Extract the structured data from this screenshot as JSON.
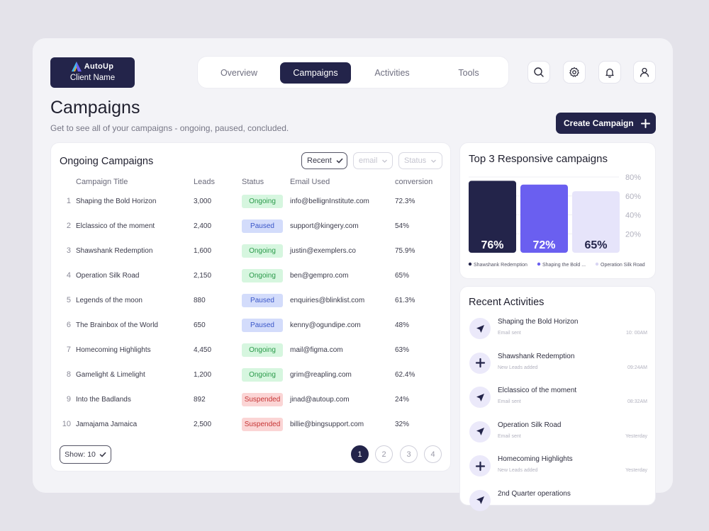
{
  "brand": {
    "name": "AutoUp",
    "client": "Client Name"
  },
  "nav": {
    "tabs": [
      {
        "label": "Overview"
      },
      {
        "label": "Campaigns"
      },
      {
        "label": "Activities"
      },
      {
        "label": "Tools"
      }
    ],
    "active": "Campaigns"
  },
  "header_icons": [
    "search-icon",
    "gear-icon",
    "bell-icon",
    "user-icon"
  ],
  "page": {
    "title": "Campaigns",
    "subtitle": "Get to see all of your campaigns - ongoing, paused, concluded.",
    "create_label": "Create Campaign"
  },
  "campaigns": {
    "title": "Ongoing Campaigns",
    "filters": {
      "sort": "Recent",
      "email": "email",
      "status": "Status"
    },
    "columns": {
      "title": "Campaign Title",
      "leads": "Leads",
      "status": "Status",
      "email": "Email Used",
      "conversion": "conversion"
    },
    "rows": [
      {
        "n": "1",
        "title": "Shaping the Bold Horizon",
        "leads": "3,000",
        "status": "Ongoing",
        "email": "info@bellignInstitute.com",
        "conversion": "72.3%"
      },
      {
        "n": "2",
        "title": "Elclassico of the moment",
        "leads": "2,400",
        "status": "Paused",
        "email": "support@kingery.com",
        "conversion": "54%"
      },
      {
        "n": "3",
        "title": "Shawshank Redemption",
        "leads": "1,600",
        "status": "Ongoing",
        "email": "justin@exemplers.co",
        "conversion": "75.9%"
      },
      {
        "n": "4",
        "title": "Operation Silk Road",
        "leads": "2,150",
        "status": "Ongoing",
        "email": "ben@gempro.com",
        "conversion": "65%"
      },
      {
        "n": "5",
        "title": "Legends of the moon",
        "leads": "880",
        "status": "Paused",
        "email": "enquiries@blinklist.com",
        "conversion": "61.3%"
      },
      {
        "n": "6",
        "title": "The Brainbox of the World",
        "leads": "650",
        "status": "Paused",
        "email": "kenny@ogundipe.com",
        "conversion": "48%"
      },
      {
        "n": "7",
        "title": "Homecoming Highlights",
        "leads": "4,450",
        "status": "Ongoing",
        "email": "mail@figma.com",
        "conversion": "63%"
      },
      {
        "n": "8",
        "title": "Gamelight & Limelight",
        "leads": "1,200",
        "status": "Ongoing",
        "email": "grim@reapling.com",
        "conversion": "62.4%"
      },
      {
        "n": "9",
        "title": "Into the Badlands",
        "leads": "892",
        "status": "Suspended",
        "email": "jinad@autoup.com",
        "conversion": "24%"
      },
      {
        "n": "10",
        "title": "Jamajama Jamaica",
        "leads": "2,500",
        "status": "Suspended",
        "email": "billie@bingsupport.com",
        "conversion": "32%"
      }
    ],
    "show_label": "Show: 10",
    "pages": [
      "1",
      "2",
      "3",
      "4"
    ],
    "current_page": "1"
  },
  "chart_data": {
    "type": "bar",
    "title": "Top 3 Responsive campaigns",
    "categories": [
      "Shawshank Redemption",
      "Shaping the Bold ...",
      "Operation Silk Road"
    ],
    "values": [
      76,
      72,
      65
    ],
    "value_labels": [
      "76%",
      "72%",
      "65%"
    ],
    "colors": [
      "#23244a",
      "#6a5ff0",
      "#e6e4fa"
    ],
    "label_colors": [
      "#ffffff",
      "#ffffff",
      "#23244a"
    ],
    "y_ticks": [
      80,
      60,
      40,
      20
    ],
    "y_tick_labels": [
      "80%",
      "60%",
      "40%",
      "20%"
    ],
    "legend_position": "bottom"
  },
  "activities": {
    "title": "Recent Activities",
    "items": [
      {
        "icon": "send-icon",
        "title": "Shaping the Bold Horizon",
        "sub": "Email sent",
        "time": "10: 00AM"
      },
      {
        "icon": "plus-icon",
        "title": "Shawshank Redemption",
        "sub": "New Leads added",
        "time": "09:24AM"
      },
      {
        "icon": "send-icon",
        "title": "Elclassico of the moment",
        "sub": "Email sent",
        "time": "08:32AM"
      },
      {
        "icon": "send-icon",
        "title": "Operation Silk Road",
        "sub": "Email sent",
        "time": "Yesterday"
      },
      {
        "icon": "plus-icon",
        "title": "Homecoming Highlights",
        "sub": "New Leads added",
        "time": "Yesterday"
      },
      {
        "icon": "send-icon",
        "title": "2nd Quarter operations",
        "sub": "",
        "time": ""
      }
    ]
  }
}
